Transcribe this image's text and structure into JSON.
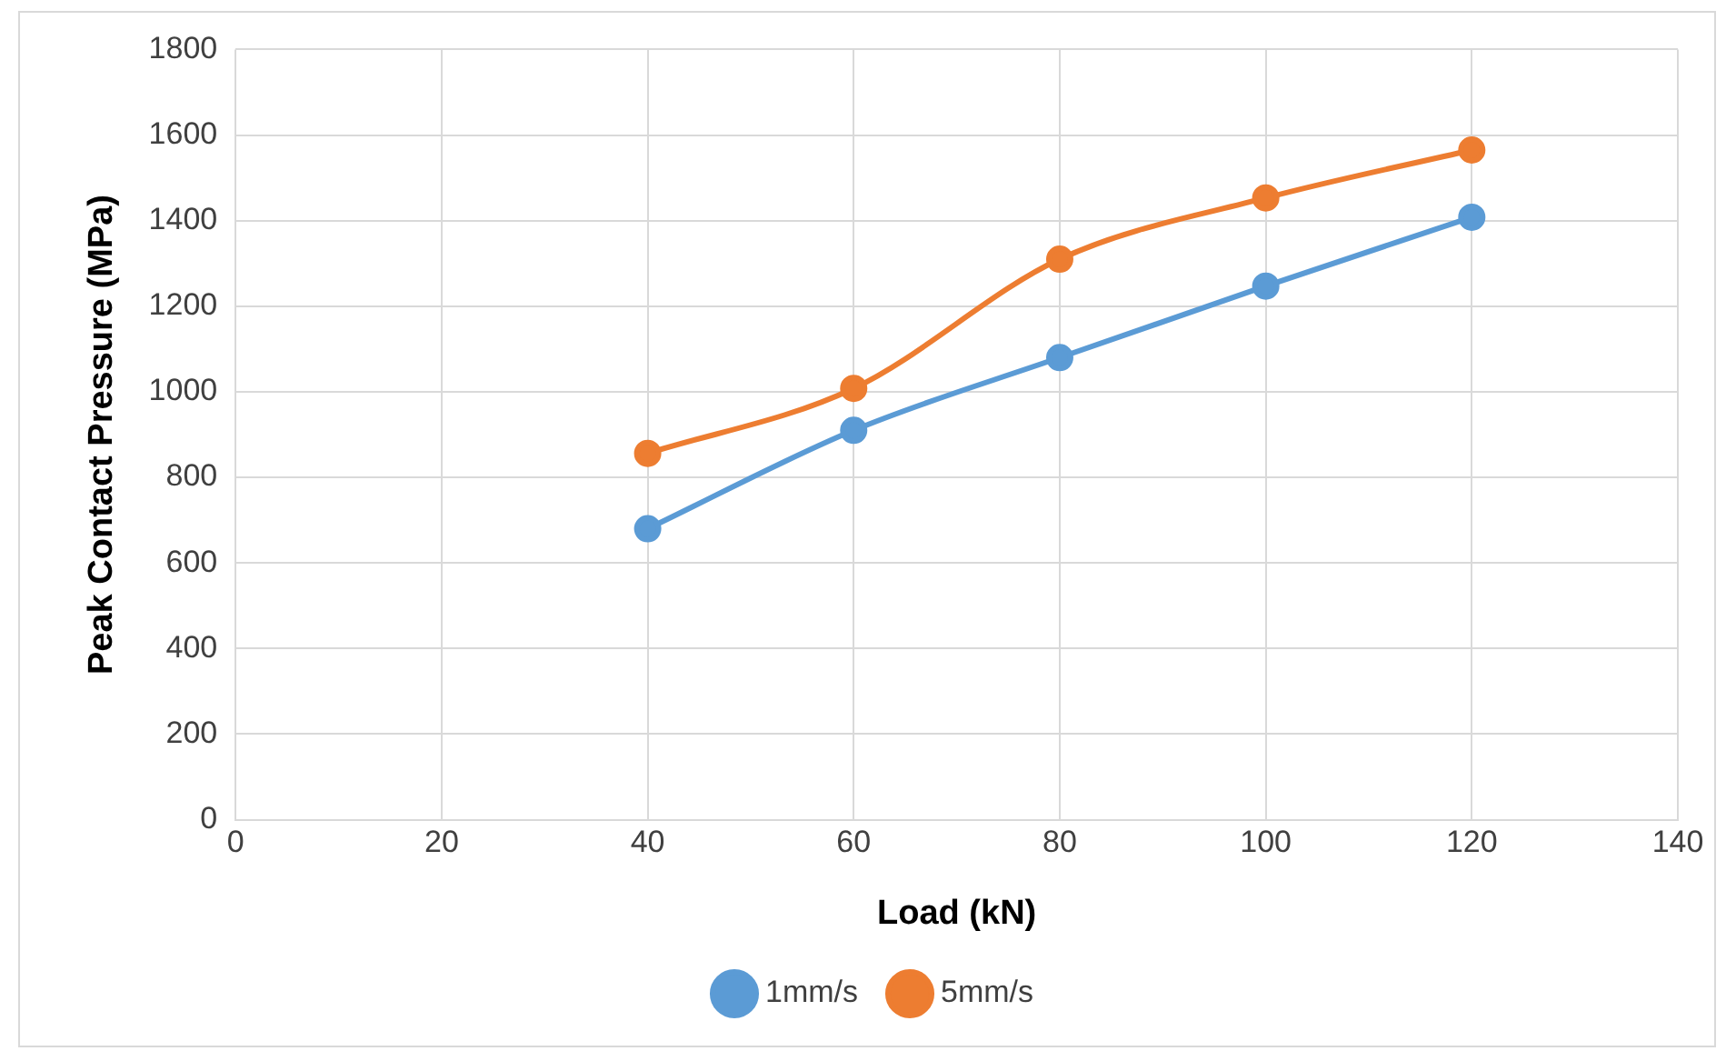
{
  "chart_data": {
    "type": "line",
    "xlabel": "Load (kN)",
    "ylabel": "Peak Contact Pressure (MPa)",
    "x": [
      40,
      60,
      80,
      100,
      120
    ],
    "series": [
      {
        "name": "1mm/s",
        "color": "#5b9bd5",
        "values": [
          680,
          910,
          1080,
          1247,
          1408
        ]
      },
      {
        "name": "5mm/s",
        "color": "#ed7d31",
        "values": [
          856,
          1008,
          1310,
          1453,
          1565
        ]
      }
    ],
    "xlim": [
      0,
      140
    ],
    "xticks": [
      0,
      20,
      40,
      60,
      80,
      100,
      120,
      140
    ],
    "ylim": [
      0,
      1800
    ],
    "yticks": [
      0,
      200,
      400,
      600,
      800,
      1000,
      1200,
      1400,
      1600,
      1800
    ],
    "grid": true,
    "legend": "bottom",
    "marker": "circle",
    "line_style": "solid"
  }
}
